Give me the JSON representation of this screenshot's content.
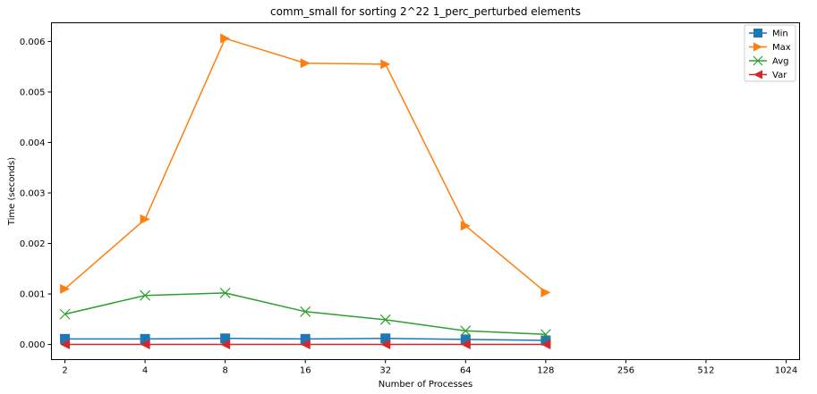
{
  "chart_data": {
    "type": "line",
    "title": "comm_small for sorting 2^22 1_perc_perturbed elements",
    "xlabel": "Number of Processes",
    "ylabel": "Time (seconds)",
    "x_scale": "log2",
    "x_ticks": [
      2,
      4,
      8,
      16,
      32,
      64,
      128,
      256,
      512,
      1024
    ],
    "x_tick_labels": [
      "2",
      "4",
      "8",
      "16",
      "32",
      "64",
      "128",
      "256",
      "512",
      "1024"
    ],
    "xlim": [
      1.78,
      1150
    ],
    "y_ticks": [
      0.0,
      0.001,
      0.002,
      0.003,
      0.004,
      0.005,
      0.006
    ],
    "y_tick_labels": [
      "0.000",
      "0.001",
      "0.002",
      "0.003",
      "0.004",
      "0.005",
      "0.006"
    ],
    "ylim": [
      -0.0003,
      0.00637
    ],
    "grid": false,
    "legend_position": "top-right",
    "x": [
      2,
      4,
      8,
      16,
      32,
      64,
      128
    ],
    "series": [
      {
        "name": "Min",
        "color": "#1f77b4",
        "marker": "square",
        "values": [
          0.00011,
          0.00011,
          0.00012,
          0.00011,
          0.00012,
          0.0001,
          8e-05
        ]
      },
      {
        "name": "Max",
        "color": "#ff7f0e",
        "marker": "triangle-right",
        "values": [
          0.0011,
          0.00248,
          0.00606,
          0.00557,
          0.00555,
          0.00235,
          0.00103
        ]
      },
      {
        "name": "Avg",
        "color": "#2ca02c",
        "marker": "x",
        "values": [
          0.0006,
          0.00097,
          0.00102,
          0.00065,
          0.00049,
          0.00027,
          0.0002
        ]
      },
      {
        "name": "Var",
        "color": "#d62728",
        "marker": "triangle-left",
        "values": [
          0.0,
          0.0,
          0.0,
          0.0,
          0.0,
          0.0,
          0.0
        ]
      }
    ]
  }
}
